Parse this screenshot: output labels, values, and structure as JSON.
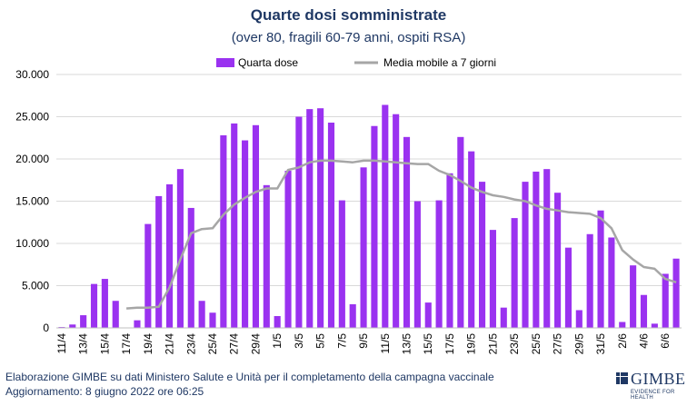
{
  "colors": {
    "bar": "#9a32f0",
    "line": "#a6a6a6",
    "text": "#1f3864",
    "grid": "#d9d9d9"
  },
  "chart_data": {
    "type": "bar",
    "title": "Quarte dosi somministrate",
    "subtitle": "(over 80, fragili 60-79 anni, ospiti RSA)",
    "ylim": [
      0,
      30000
    ],
    "yticks": [
      "0",
      "5.000",
      "10.000",
      "15.000",
      "20.000",
      "25.000",
      "30.000"
    ],
    "grid": true,
    "legend_position": "top",
    "categories": [
      "11/4",
      "12/4",
      "13/4",
      "14/4",
      "15/4",
      "16/4",
      "17/4",
      "18/4",
      "19/4",
      "20/4",
      "21/4",
      "22/4",
      "23/4",
      "24/4",
      "25/4",
      "26/4",
      "27/4",
      "28/4",
      "29/4",
      "30/4",
      "1/5",
      "2/5",
      "3/5",
      "4/5",
      "5/5",
      "6/5",
      "7/5",
      "8/5",
      "9/5",
      "10/5",
      "11/5",
      "12/5",
      "13/5",
      "14/5",
      "15/5",
      "16/5",
      "17/5",
      "18/5",
      "19/5",
      "20/5",
      "21/5",
      "22/5",
      "23/5",
      "24/5",
      "25/5",
      "26/5",
      "27/5",
      "28/5",
      "29/5",
      "30/5",
      "31/5",
      "1/6",
      "2/6",
      "3/6",
      "4/6",
      "5/6",
      "6/6",
      "7/6"
    ],
    "xtick_labels": [
      "11/4",
      "13/4",
      "15/4",
      "17/4",
      "19/4",
      "21/4",
      "23/4",
      "25/4",
      "27/4",
      "29/4",
      "1/5",
      "3/5",
      "5/5",
      "7/5",
      "9/5",
      "11/5",
      "13/5",
      "15/5",
      "17/5",
      "19/5",
      "21/5",
      "23/5",
      "25/5",
      "27/5",
      "29/5",
      "31/5",
      "2/6",
      "4/6",
      "6/6"
    ],
    "series": [
      {
        "name": "Quarta dose",
        "kind": "bar",
        "values": [
          100,
          400,
          1500,
          5200,
          5800,
          3200,
          0,
          900,
          12300,
          15600,
          17000,
          18800,
          14200,
          3200,
          1800,
          22800,
          24200,
          22200,
          24000,
          16900,
          1400,
          18600,
          25000,
          25900,
          26000,
          24300,
          15100,
          2800,
          19000,
          23900,
          26400,
          25300,
          22600,
          15000,
          3000,
          15100,
          18300,
          22600,
          20900,
          17300,
          11600,
          2400,
          13000,
          17300,
          18500,
          18800,
          16000,
          9500,
          2100,
          11100,
          13900,
          10700,
          700,
          7400,
          3900,
          500,
          6400,
          8200
        ]
      },
      {
        "name": "Media mobile a 7 giorni",
        "kind": "line",
        "values": [
          null,
          null,
          null,
          null,
          null,
          null,
          2300,
          2400,
          2400,
          2500,
          4800,
          8100,
          11200,
          11700,
          11800,
          13400,
          14600,
          15400,
          16100,
          16500,
          16500,
          18700,
          19000,
          19600,
          19800,
          19800,
          19700,
          19600,
          19800,
          19800,
          19700,
          19600,
          19500,
          19400,
          19400,
          18600,
          18100,
          17400,
          16600,
          16100,
          15700,
          15500,
          15200,
          15000,
          14500,
          14100,
          13900,
          13700,
          13600,
          13500,
          13000,
          11800,
          9200,
          8100,
          7200,
          7000,
          5800,
          5400
        ]
      }
    ]
  },
  "footer": {
    "line1": "Elaborazione GIMBE su dati Ministero Salute e Unità per il completamento della campagna vaccinale",
    "line2": "Aggiornamento: 8 giugno 2022 ore 06:25"
  },
  "logo": {
    "word": "GIMBE",
    "tagline": "EVIDENCE FOR HEALTH"
  }
}
